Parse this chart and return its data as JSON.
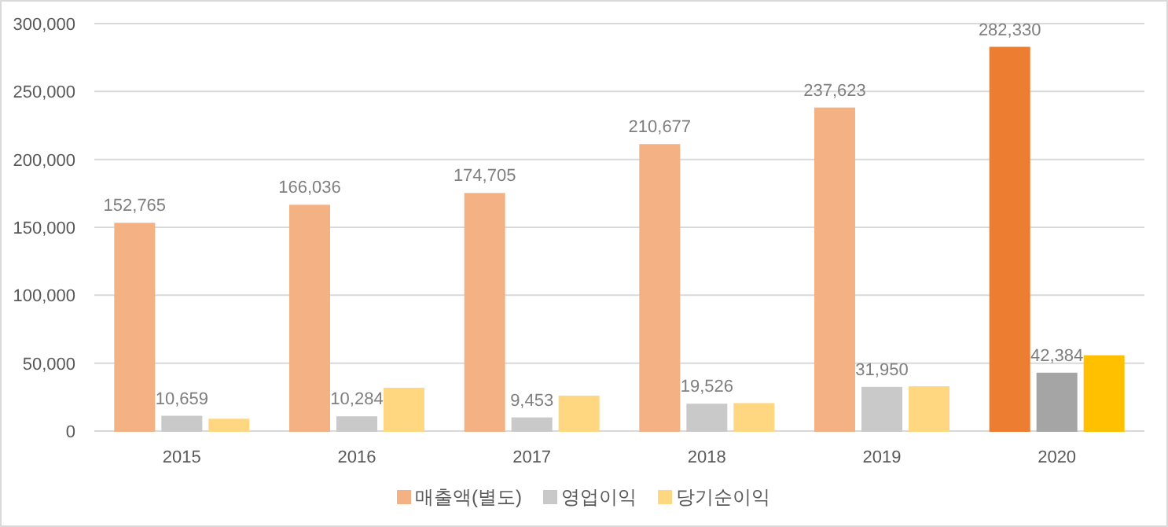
{
  "chart_data": {
    "type": "bar",
    "categories": [
      "2015",
      "2016",
      "2017",
      "2018",
      "2019",
      "2020"
    ],
    "series": [
      {
        "name": "매출액(별도)",
        "color": "#f4b183",
        "colors": [
          "#f4b183",
          "#f4b183",
          "#f4b183",
          "#f4b183",
          "#f4b183",
          "#ed7d31"
        ],
        "values": [
          152765,
          166036,
          174705,
          210677,
          237623,
          282330
        ],
        "value_labels": [
          "152,765",
          "166,036",
          "174,705",
          "210,677",
          "237,623",
          "282,330"
        ]
      },
      {
        "name": "영업이익",
        "color": "#c9c9c9",
        "colors": [
          "#c9c9c9",
          "#c9c9c9",
          "#c9c9c9",
          "#c9c9c9",
          "#c9c9c9",
          "#a5a5a5"
        ],
        "values": [
          10659,
          10284,
          9453,
          19526,
          31950,
          42384
        ],
        "value_labels": [
          "10,659",
          "10,284",
          "9,453",
          "19,526",
          "31,950",
          "42,384"
        ]
      },
      {
        "name": "당기순이익",
        "color": "#ffd780",
        "colors": [
          "#ffd780",
          "#ffd780",
          "#ffd780",
          "#ffd780",
          "#ffd780",
          "#ffc000"
        ],
        "values": [
          8500,
          31300,
          25500,
          20000,
          32400,
          55200
        ]
      }
    ],
    "ylim": [
      0,
      300000
    ],
    "yticks": [
      {
        "value": 0,
        "label": "0"
      },
      {
        "value": 50000,
        "label": "50,000"
      },
      {
        "value": 100000,
        "label": "100,000"
      },
      {
        "value": 150000,
        "label": "150,000"
      },
      {
        "value": 200000,
        "label": "200,000"
      },
      {
        "value": 250000,
        "label": "250,000"
      },
      {
        "value": 300000,
        "label": "300,000"
      }
    ],
    "grid": "y",
    "legend": "bottom"
  }
}
